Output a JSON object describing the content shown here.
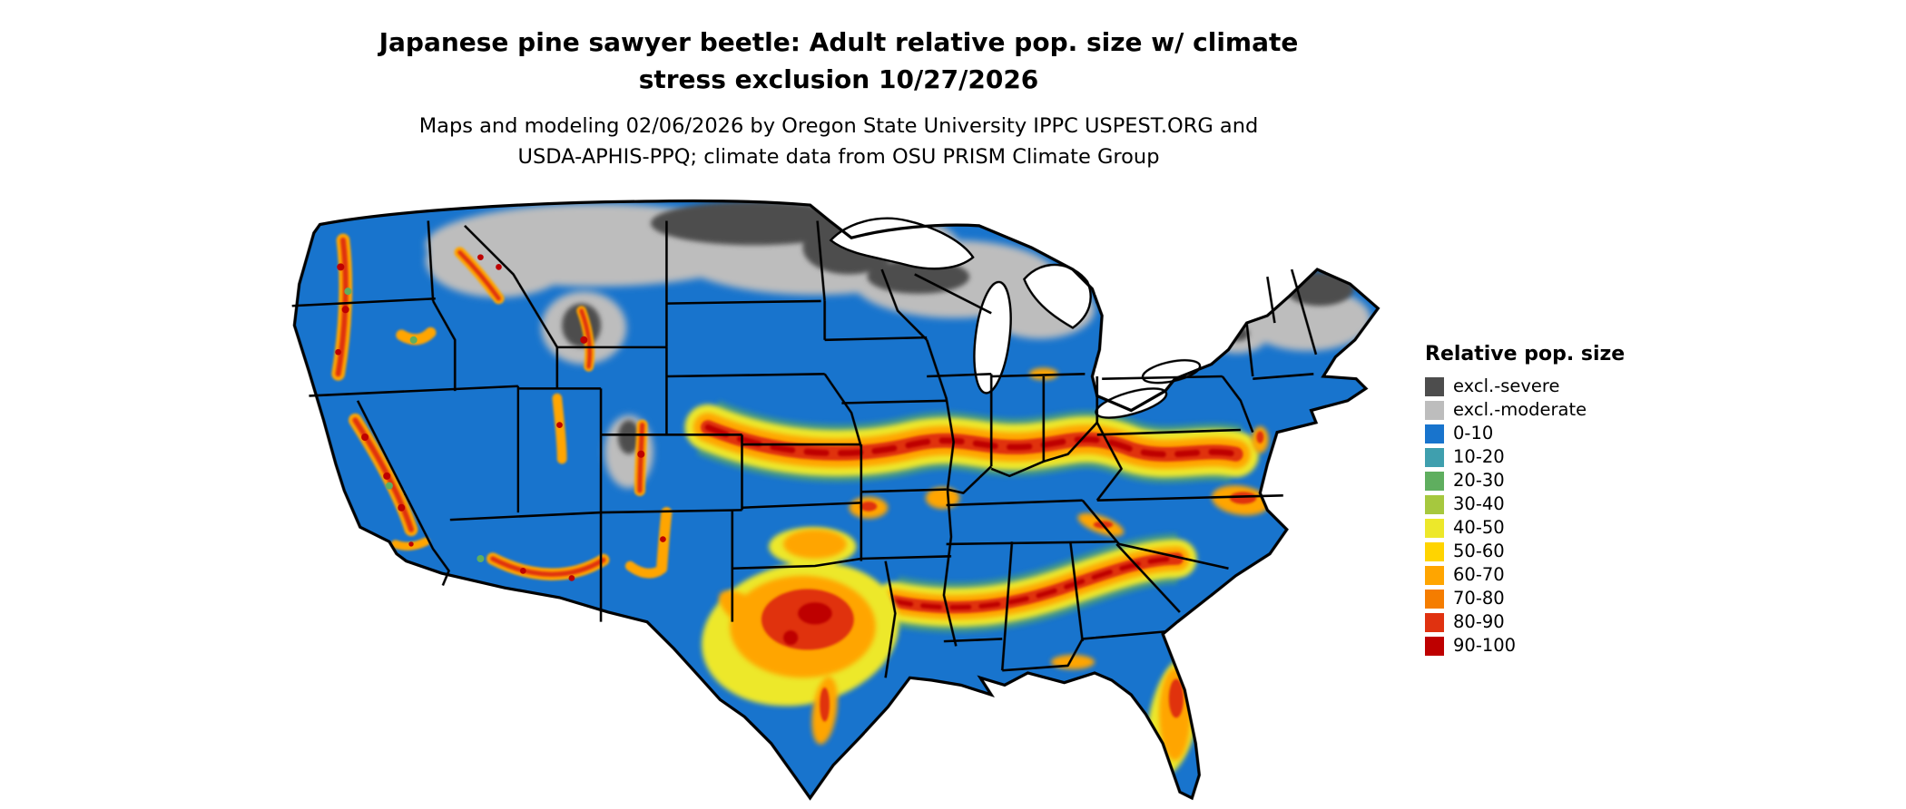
{
  "title": {
    "line1": "Japanese pine sawyer beetle: Adult relative pop. size w/ climate",
    "line2": "stress exclusion 10/27/2026"
  },
  "subtitle": {
    "line1": "Maps and modeling 02/06/2026 by Oregon State University IPPC USPEST.ORG and",
    "line2": "USDA-APHIS-PPQ; climate data from OSU PRISM Climate Group"
  },
  "legend": {
    "title": "Relative pop. size",
    "items": [
      {
        "label": "excl.-severe",
        "color": "#4D4D4D"
      },
      {
        "label": "excl.-moderate",
        "color": "#BDBDBD"
      },
      {
        "label": "0-10",
        "color": "#1874CD"
      },
      {
        "label": "10-20",
        "color": "#3F9FAE"
      },
      {
        "label": "20-30",
        "color": "#5FAE5F"
      },
      {
        "label": "30-40",
        "color": "#A6C83E"
      },
      {
        "label": "40-50",
        "color": "#EDE82A"
      },
      {
        "label": "50-60",
        "color": "#FFD400"
      },
      {
        "label": "60-70",
        "color": "#FFA500"
      },
      {
        "label": "70-80",
        "color": "#F57D00"
      },
      {
        "label": "80-90",
        "color": "#E03210"
      },
      {
        "label": "90-100",
        "color": "#BE0000"
      }
    ]
  }
}
